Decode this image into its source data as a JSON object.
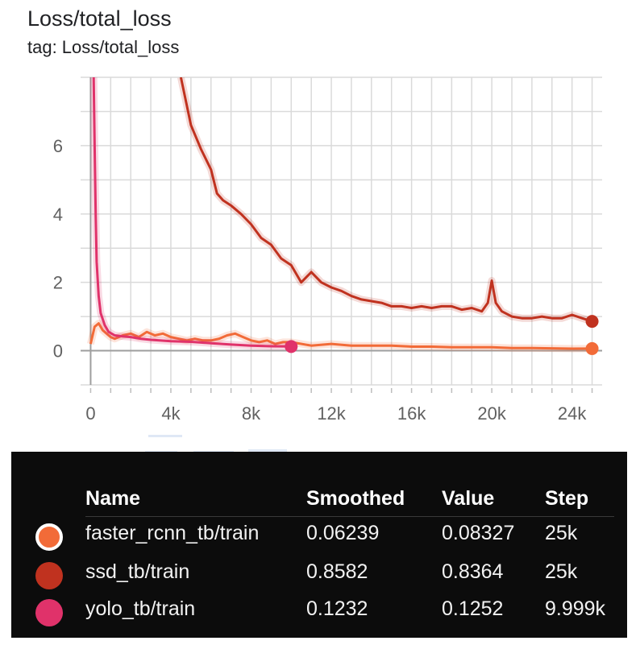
{
  "card": {
    "title": "Loss/total_loss",
    "subtitle": "tag: Loss/total_loss"
  },
  "chart_data": {
    "type": "line",
    "xlabel": "",
    "ylabel": "",
    "xlim": [
      -500,
      25500
    ],
    "ylim": [
      -1,
      8
    ],
    "x_ticks": [
      0,
      4000,
      8000,
      12000,
      16000,
      20000,
      24000
    ],
    "x_tick_labels": [
      "0",
      "4k",
      "8k",
      "12k",
      "16k",
      "20k",
      "24k"
    ],
    "y_ticks": [
      0,
      2,
      4,
      6
    ],
    "y_tick_labels": [
      "0",
      "2",
      "4",
      "6"
    ],
    "grid": true,
    "series": [
      {
        "name": "faster_rcnn_tb/train",
        "color": "#f26b38",
        "x": [
          0,
          200,
          400,
          600,
          800,
          1000,
          1200,
          1600,
          2000,
          2400,
          2800,
          3200,
          3600,
          4000,
          4400,
          4800,
          5200,
          5600,
          6000,
          6400,
          6800,
          7200,
          7600,
          8000,
          8400,
          8800,
          9200,
          9600,
          10000,
          11000,
          12000,
          13000,
          14000,
          15000,
          16000,
          17000,
          18000,
          19000,
          20000,
          21000,
          22000,
          23000,
          24000,
          25000
        ],
        "y": [
          0.2,
          0.7,
          0.8,
          0.6,
          0.5,
          0.4,
          0.35,
          0.45,
          0.5,
          0.4,
          0.55,
          0.45,
          0.5,
          0.4,
          0.35,
          0.3,
          0.35,
          0.3,
          0.3,
          0.35,
          0.45,
          0.5,
          0.4,
          0.3,
          0.25,
          0.3,
          0.2,
          0.25,
          0.25,
          0.15,
          0.2,
          0.15,
          0.15,
          0.15,
          0.12,
          0.12,
          0.1,
          0.1,
          0.1,
          0.08,
          0.08,
          0.07,
          0.06,
          0.06239
        ]
      },
      {
        "name": "ssd_tb/train",
        "color": "#c0321f",
        "x": [
          4500,
          5000,
          5500,
          6000,
          6300,
          6600,
          7000,
          7500,
          8000,
          8500,
          9000,
          9500,
          10000,
          10500,
          11000,
          11500,
          12000,
          12500,
          13000,
          13500,
          14000,
          14500,
          15000,
          15500,
          16000,
          16500,
          17000,
          17500,
          18000,
          18500,
          19000,
          19500,
          19800,
          20000,
          20200,
          20500,
          21000,
          21500,
          22000,
          22500,
          23000,
          23500,
          24000,
          24500,
          25000
        ],
        "y": [
          8,
          6.6,
          5.9,
          5.3,
          4.6,
          4.4,
          4.25,
          4.0,
          3.7,
          3.3,
          3.1,
          2.7,
          2.5,
          2.0,
          2.3,
          2.0,
          1.85,
          1.75,
          1.6,
          1.5,
          1.45,
          1.4,
          1.3,
          1.3,
          1.25,
          1.3,
          1.25,
          1.3,
          1.3,
          1.2,
          1.25,
          1.15,
          1.4,
          2.05,
          1.4,
          1.15,
          1.0,
          0.95,
          0.95,
          1.0,
          0.95,
          0.95,
          1.05,
          0.95,
          0.8582
        ]
      },
      {
        "name": "yolo_tb/train",
        "color": "#e0326a",
        "x": [
          150,
          200,
          250,
          300,
          400,
          500,
          700,
          900,
          1200,
          1600,
          2000,
          2500,
          3000,
          4000,
          5000,
          6000,
          7000,
          8000,
          9000,
          10000
        ],
        "y": [
          8,
          6,
          4,
          2.6,
          1.6,
          1.1,
          0.75,
          0.55,
          0.45,
          0.42,
          0.4,
          0.35,
          0.32,
          0.28,
          0.26,
          0.22,
          0.18,
          0.15,
          0.13,
          0.1232
        ]
      }
    ]
  },
  "tooltip": {
    "headers": {
      "name": "Name",
      "smoothed": "Smoothed",
      "value": "Value",
      "step": "Step"
    },
    "rows": [
      {
        "name": "faster_rcnn_tb/train",
        "smoothed": "0.06239",
        "value": "0.08327",
        "step": "25k",
        "color": "#f26b38",
        "selected": true
      },
      {
        "name": "ssd_tb/train",
        "smoothed": "0.8582",
        "value": "0.8364",
        "step": "25k",
        "color": "#c0321f",
        "selected": false
      },
      {
        "name": "yolo_tb/train",
        "smoothed": "0.1232",
        "value": "0.1252",
        "step": "9.999k",
        "color": "#e0326a",
        "selected": false
      }
    ]
  }
}
